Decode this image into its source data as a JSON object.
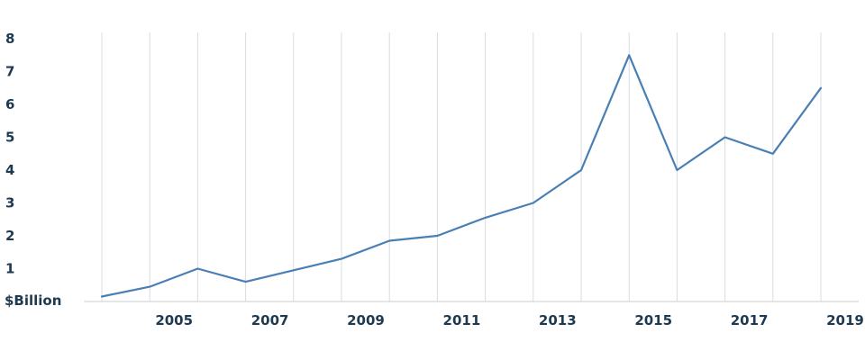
{
  "chart_data": {
    "type": "line",
    "title": "",
    "xlabel": "",
    "ylabel": "",
    "unit_label": "$Billion",
    "x": [
      2004,
      2005,
      2006,
      2007,
      2008,
      2009,
      2010,
      2011,
      2012,
      2013,
      2014,
      2015,
      2016,
      2017,
      2018,
      2019
    ],
    "series": [
      {
        "values": [
          0.15,
          0.45,
          1.0,
          0.6,
          0.95,
          1.3,
          1.85,
          2.0,
          2.55,
          3.0,
          4.0,
          7.5,
          4.0,
          5.0,
          4.5,
          6.5
        ],
        "color": "#4a7fb5"
      }
    ],
    "xticks": [
      "2005",
      "2007",
      "2009",
      "2011",
      "2013",
      "2015",
      "2017",
      "2019"
    ],
    "yticks": [
      "1",
      "2",
      "3",
      "4",
      "5",
      "6",
      "7",
      "8"
    ],
    "ylim": [
      0,
      8
    ],
    "xlim": [
      2004,
      2019
    ],
    "grid": "vertical",
    "legend": "none"
  },
  "colors": {
    "line": "#4a7fb5",
    "text": "#1d3a52",
    "grid": "#d9dde1"
  }
}
